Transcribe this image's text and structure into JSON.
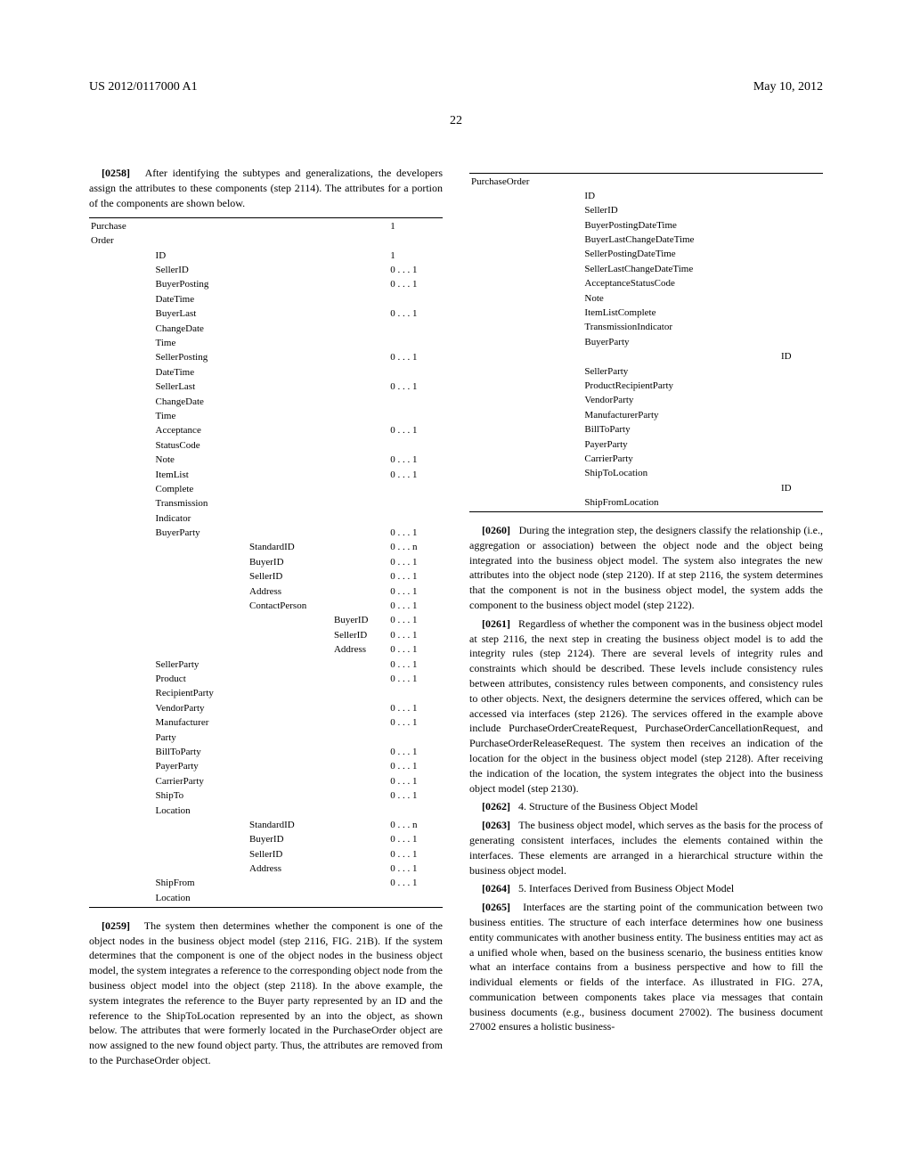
{
  "header": {
    "left": "US 2012/0117000 A1",
    "right": "May 10, 2012"
  },
  "pageNumber": "22",
  "left": {
    "p0258": {
      "num": "[0258]",
      "text": "After identifying the subtypes and generalizations, the developers assign the attributes to these components (step 2114). The attributes for a portion of the components are shown below."
    },
    "table1": {
      "rootLabel": "Purchase Order",
      "rootCard": "1",
      "rows": [
        {
          "l1": "ID",
          "card": "1"
        },
        {
          "l1": "SellerID",
          "card": "0 . . . 1"
        },
        {
          "l1": "BuyerPosting",
          "l1b": "DateTime",
          "card": "0 . . . 1"
        },
        {
          "l1": "BuyerLast",
          "l1b": "ChangeDate",
          "l1c": "Time",
          "card": "0 . . . 1"
        },
        {
          "l1": "SellerPosting",
          "l1b": "DateTime",
          "card": "0 . . . 1"
        },
        {
          "l1": "SellerLast",
          "l1b": "ChangeDate",
          "l1c": "Time",
          "card": "0 . . . 1"
        },
        {
          "l1": "Acceptance",
          "l1b": "StatusCode",
          "card": "0 . . . 1"
        },
        {
          "l1": "Note",
          "card": "0 . . . 1"
        },
        {
          "l1": "ItemList",
          "l1b": "Complete",
          "card": "0 . . . 1"
        },
        {
          "l1": "Transmission",
          "l1b": "Indicator",
          "card": ""
        },
        {
          "l1": "BuyerParty",
          "card": "0 . . . 1"
        },
        {
          "l2": "StandardID",
          "card": "0 . . . n"
        },
        {
          "l2": "BuyerID",
          "card": "0 . . . 1"
        },
        {
          "l2": "SellerID",
          "card": "0 . . . 1"
        },
        {
          "l2": "Address",
          "card": "0 . . . 1"
        },
        {
          "l2": "ContactPerson",
          "card": "0 . . . 1"
        },
        {
          "l3": "BuyerID",
          "card": "0 . . . 1"
        },
        {
          "l3": "SellerID",
          "card": "0 . . . 1"
        },
        {
          "l3": "Address",
          "card": "0 . . . 1"
        },
        {
          "l1": "SellerParty",
          "card": "0 . . . 1"
        },
        {
          "l1": "Product",
          "l1b": "RecipientParty",
          "card": "0 . . . 1"
        },
        {
          "l1": "VendorParty",
          "card": "0 . . . 1"
        },
        {
          "l1": "Manufacturer",
          "l1b": "Party",
          "card": "0 . . . 1"
        },
        {
          "l1": "BillToParty",
          "card": "0 . . . 1"
        },
        {
          "l1": "PayerParty",
          "card": "0 . . . 1"
        },
        {
          "l1": "CarrierParty",
          "card": "0 . . . 1"
        },
        {
          "l1": "ShipTo",
          "l1b": "Location",
          "card": "0 . . . 1"
        },
        {
          "l2": "StandardID",
          "card": "0 . . . n"
        },
        {
          "l2": "BuyerID",
          "card": "0 . . . 1"
        },
        {
          "l2": "SellerID",
          "card": "0 . . . 1"
        },
        {
          "l2": "Address",
          "card": "0 . . . 1"
        },
        {
          "l1": "ShipFrom",
          "l1b": "Location",
          "card": "0 . . . 1"
        }
      ]
    },
    "p0259": {
      "num": "[0259]",
      "text": "The system then determines whether the component is one of the object nodes in the business object model (step 2116, FIG. 21B). If the system determines that the component is one of the object nodes in the business object model, the system integrates a reference to the corresponding object node from the business object model into the object (step 2118). In the above example, the system integrates the reference to the Buyer party represented by an ID and the reference to the ShipToLocation represented by an into the object, as shown below. The attributes that were formerly located in the PurchaseOrder object are now assigned to the new found object party. Thus, the attributes are removed from to the PurchaseOrder object."
    }
  },
  "right": {
    "table2": {
      "rootLabel": "PurchaseOrder",
      "rows": [
        {
          "l1": "ID"
        },
        {
          "l1": "SellerID"
        },
        {
          "l1": "BuyerPostingDateTime"
        },
        {
          "l1": "BuyerLastChangeDateTime"
        },
        {
          "l1": "SellerPostingDateTime"
        },
        {
          "l1": "SellerLastChangeDateTime"
        },
        {
          "l1": "AcceptanceStatusCode"
        },
        {
          "l1": "Note"
        },
        {
          "l1": "ItemListComplete"
        },
        {
          "l1": "TransmissionIndicator"
        },
        {
          "l1": "BuyerParty"
        },
        {
          "l2": "ID"
        },
        {
          "l1": "SellerParty"
        },
        {
          "l1": "ProductRecipientParty"
        },
        {
          "l1": "VendorParty"
        },
        {
          "l1": "ManufacturerParty"
        },
        {
          "l1": "BillToParty"
        },
        {
          "l1": "PayerParty"
        },
        {
          "l1": "CarrierParty"
        },
        {
          "l1": "ShipToLocation"
        },
        {
          "l2": "ID"
        },
        {
          "l1": "ShipFromLocation"
        }
      ]
    },
    "p0260": {
      "num": "[0260]",
      "text": "During the integration step, the designers classify the relationship (i.e., aggregation or association) between the object node and the object being integrated into the business object model. The system also integrates the new attributes into the object node (step 2120). If at step 2116, the system determines that the component is not in the business object model, the system adds the component to the business object model (step 2122)."
    },
    "p0261": {
      "num": "[0261]",
      "text": "Regardless of whether the component was in the business object model at step 2116, the next step in creating the business object model is to add the integrity rules (step 2124). There are several levels of integrity rules and constraints which should be described. These levels include consistency rules between attributes, consistency rules between components, and consistency rules to other objects. Next, the designers determine the services offered, which can be accessed via interfaces (step 2126). The services offered in the example above include PurchaseOrderCreateRequest, PurchaseOrderCancellationRequest, and PurchaseOrderReleaseRequest. The system then receives an indication of the location for the object in the business object model (step 2128). After receiving the indication of the location, the system integrates the object into the business object model (step 2130)."
    },
    "p0262": {
      "num": "[0262]",
      "text": "4. Structure of the Business Object Model"
    },
    "p0263": {
      "num": "[0263]",
      "text": "The business object model, which serves as the basis for the process of generating consistent interfaces, includes the elements contained within the interfaces. These elements are arranged in a hierarchical structure within the business object model."
    },
    "p0264": {
      "num": "[0264]",
      "text": "5. Interfaces Derived from Business Object Model"
    },
    "p0265": {
      "num": "[0265]",
      "text": "Interfaces are the starting point of the communication between two business entities. The structure of each interface determines how one business entity communicates with another business entity. The business entities may act as a unified whole when, based on the business scenario, the business entities know what an interface contains from a business perspective and how to fill the individual elements or fields of the interface. As illustrated in FIG. 27A, communication between components takes place via messages that contain business documents (e.g., business document 27002). The business document 27002 ensures a holistic business-"
    }
  }
}
